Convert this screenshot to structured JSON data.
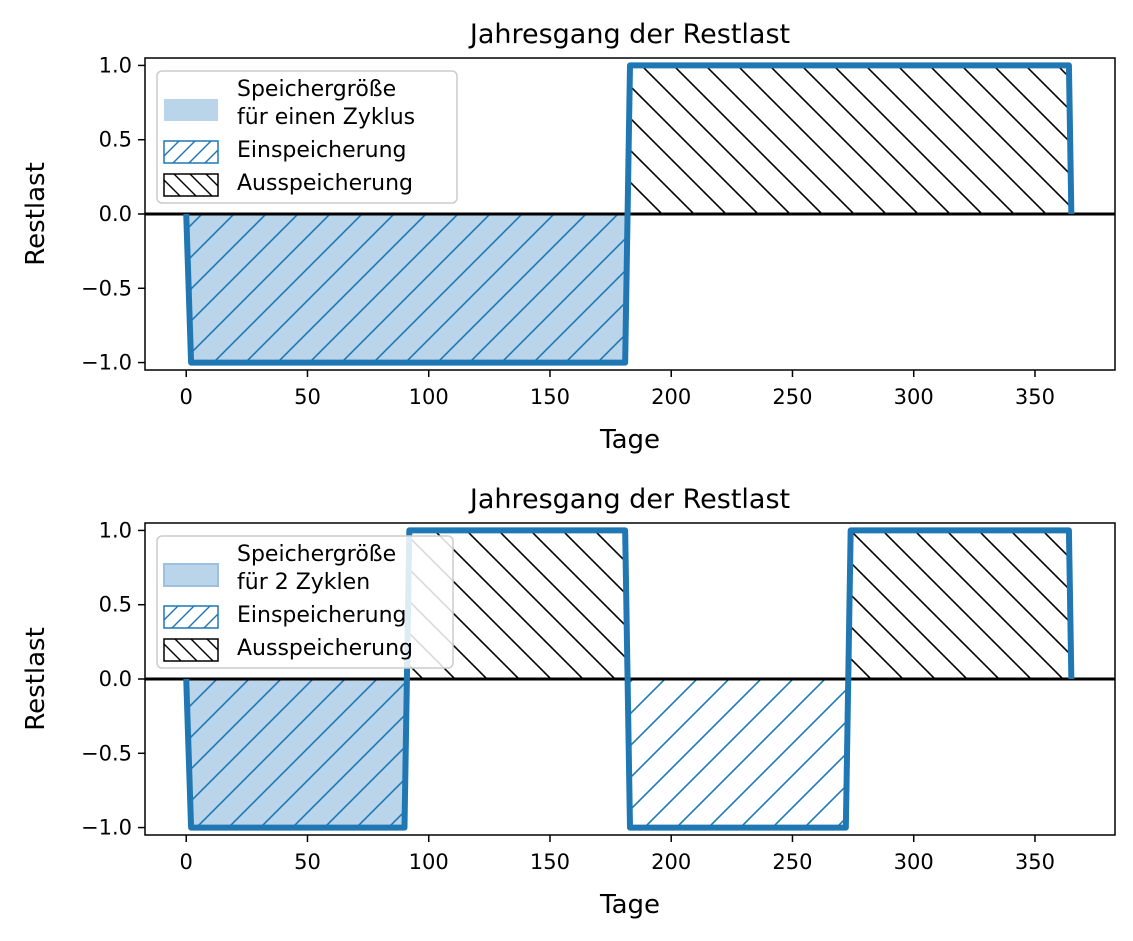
{
  "colors": {
    "line": "#1f77b4",
    "fill": "#bad4ea",
    "charge_hatch": "#1f77b4",
    "discharge_hatch": "#000000",
    "zero_line": "#000000"
  },
  "chart_data": [
    {
      "type": "line",
      "title": "Jahresgang der Restlast",
      "xlabel": "Tage",
      "ylabel": "Restlast",
      "xlim": [
        -17,
        383
      ],
      "ylim": [
        -1.05,
        1.05
      ],
      "x_ticks": [
        0,
        50,
        100,
        150,
        200,
        250,
        300,
        350
      ],
      "y_ticks": [
        1.0,
        0.5,
        0.0,
        -0.5,
        -1.0
      ],
      "x_tick_labels": [
        "0",
        "50",
        "100",
        "150",
        "200",
        "250",
        "300",
        "350"
      ],
      "y_tick_labels": [
        "1.0",
        "0.5",
        "0.0",
        "−0.5",
        "−1.0"
      ],
      "grid": false,
      "legend_position": "upper-left",
      "series": [
        {
          "name": "Restlast",
          "x": [
            0,
            2,
            181,
            183,
            364,
            365
          ],
          "y": [
            0,
            -1,
            -1,
            1,
            1,
            0
          ]
        }
      ],
      "regions": [
        {
          "x0": 0,
          "x1": 182,
          "kind": "charge",
          "filled": true
        },
        {
          "x0": 182,
          "x1": 365,
          "kind": "discharge",
          "filled": false
        }
      ],
      "legend": [
        {
          "kind": "storage",
          "lines": [
            "Speichergröße",
            "für einen Zyklus"
          ]
        },
        {
          "kind": "charge",
          "lines": [
            "Einspeicherung"
          ]
        },
        {
          "kind": "discharge",
          "lines": [
            "Ausspeicherung"
          ]
        }
      ]
    },
    {
      "type": "line",
      "title": "Jahresgang der Restlast",
      "xlabel": "Tage",
      "ylabel": "Restlast",
      "xlim": [
        -17,
        383
      ],
      "ylim": [
        -1.05,
        1.05
      ],
      "x_ticks": [
        0,
        50,
        100,
        150,
        200,
        250,
        300,
        350
      ],
      "y_ticks": [
        1.0,
        0.5,
        0.0,
        -0.5,
        -1.0
      ],
      "x_tick_labels": [
        "0",
        "50",
        "100",
        "150",
        "200",
        "250",
        "300",
        "350"
      ],
      "y_tick_labels": [
        "1.0",
        "0.5",
        "0.0",
        "−0.5",
        "−1.0"
      ],
      "grid": false,
      "legend_position": "upper-left",
      "series": [
        {
          "name": "Restlast",
          "x": [
            0,
            2,
            90,
            92,
            181,
            183,
            272,
            274,
            364,
            365
          ],
          "y": [
            0,
            -1,
            -1,
            1,
            1,
            -1,
            -1,
            1,
            1,
            0
          ]
        }
      ],
      "regions": [
        {
          "x0": 0,
          "x1": 91,
          "kind": "charge",
          "filled": true
        },
        {
          "x0": 91,
          "x1": 182,
          "kind": "discharge",
          "filled": false
        },
        {
          "x0": 182,
          "x1": 273,
          "kind": "charge",
          "filled": false
        },
        {
          "x0": 273,
          "x1": 365,
          "kind": "discharge",
          "filled": false
        }
      ],
      "legend": [
        {
          "kind": "storage",
          "lines": [
            "Speichergröße",
            "für 2 Zyklen"
          ]
        },
        {
          "kind": "charge",
          "lines": [
            "Einspeicherung"
          ]
        },
        {
          "kind": "discharge",
          "lines": [
            "Ausspeicherung"
          ]
        }
      ]
    }
  ]
}
